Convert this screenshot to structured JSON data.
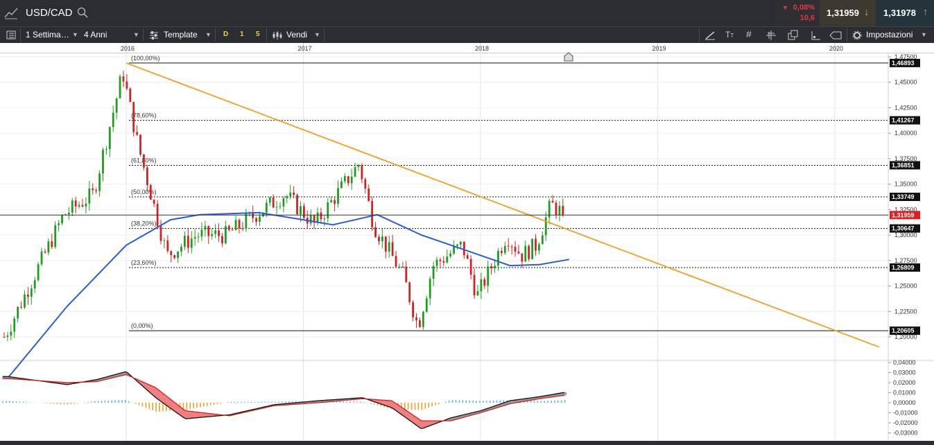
{
  "header": {
    "symbol": "USD/CAD",
    "change_pct": "0,08%",
    "change_abs": "10,6",
    "bid": "1,31959",
    "ask": "1,31978"
  },
  "toolbar": {
    "period": "1 Settima…",
    "range": "4 Anni",
    "template": "Template",
    "d": "D",
    "one": "1",
    "five": "5",
    "side": "Vendi",
    "settings": "Impostazioni"
  },
  "colors": {
    "bull": "#1e9e1e",
    "bear": "#d42020",
    "sma": "#2a5bd7",
    "trendline": "#f0a020",
    "current_price": "#e02020",
    "macd_up": "#5ab4e8",
    "macd_down": "#f0a020"
  },
  "chart_data": [
    {
      "type": "candlestick",
      "timeframe": "1 Settima…",
      "range": "4 Anni",
      "x_labels": [
        "2016",
        "2017",
        "2018",
        "2019",
        "2020"
      ],
      "y_ticks": [
        "1,47500",
        "1,45000",
        "1,42500",
        "1,40000",
        "1,37500",
        "1,35000",
        "1,32500",
        "1,30000",
        "1,27500",
        "1,25000",
        "1,22500",
        "1,20000"
      ],
      "ylim": [
        1.19,
        1.48
      ],
      "fibonacci": [
        {
          "label": "(100,00%)",
          "value": 1.46893,
          "price_label": "1,46893"
        },
        {
          "label": "(78,60%)",
          "value": 1.41267,
          "price_label": "1,41267"
        },
        {
          "label": "(61,80%)",
          "value": 1.36851,
          "price_label": "1,36851"
        },
        {
          "label": "(50,00%)",
          "value": 1.33749,
          "price_label": "1,33749"
        },
        {
          "label": "(38,20%)",
          "value": 1.30647,
          "price_label": "1,30647"
        },
        {
          "label": "(23,60%)",
          "value": 1.26809,
          "price_label": "1,26809"
        },
        {
          "label": "(0,00%)",
          "value": 1.20605,
          "price_label": "1,20605"
        }
      ],
      "current_price": {
        "value": 1.31959,
        "label": "1,31959"
      },
      "close_path": [
        [
          "2015-05",
          1.2
        ],
        [
          "2015-07",
          1.26
        ],
        [
          "2015-09",
          1.32
        ],
        [
          "2015-11",
          1.34
        ],
        [
          "2016-01",
          1.46
        ],
        [
          "2016-02",
          1.39
        ],
        [
          "2016-04",
          1.28
        ],
        [
          "2016-05",
          1.29
        ],
        [
          "2016-06",
          1.3
        ],
        [
          "2016-08",
          1.3
        ],
        [
          "2016-10",
          1.32
        ],
        [
          "2016-12",
          1.34
        ],
        [
          "2017-02",
          1.31
        ],
        [
          "2017-05",
          1.37
        ],
        [
          "2017-06",
          1.31
        ],
        [
          "2017-08",
          1.26
        ],
        [
          "2017-09",
          1.21
        ],
        [
          "2017-10",
          1.27
        ],
        [
          "2017-12",
          1.29
        ],
        [
          "2018-01",
          1.24
        ],
        [
          "2018-03",
          1.3
        ],
        [
          "2018-04",
          1.28
        ],
        [
          "2018-05",
          1.29
        ],
        [
          "2018-06",
          1.33
        ],
        [
          "2018-07",
          1.3196
        ]
      ],
      "sma": [
        [
          "2015-05",
          1.16
        ],
        [
          "2015-09",
          1.23
        ],
        [
          "2016-01",
          1.29
        ],
        [
          "2016-04",
          1.315
        ],
        [
          "2016-06",
          1.32
        ],
        [
          "2016-10",
          1.322
        ],
        [
          "2017-01",
          1.315
        ],
        [
          "2017-03",
          1.31
        ],
        [
          "2017-06",
          1.32
        ],
        [
          "2017-09",
          1.3
        ],
        [
          "2017-12",
          1.285
        ],
        [
          "2018-03",
          1.27
        ],
        [
          "2018-05",
          1.271
        ],
        [
          "2018-07",
          1.276
        ]
      ],
      "trendline": {
        "from": [
          "2016-01",
          1.469
        ],
        "to": [
          "2020-04",
          1.19
        ]
      }
    },
    {
      "type": "macd",
      "y_ticks": [
        "0,04000",
        "0,03000",
        "0,02000",
        "0,01000",
        "0,00000",
        "-0,01000",
        "-0,02000",
        "-0,03000"
      ],
      "ylim": [
        -0.03,
        0.04
      ],
      "macd": [
        [
          "2015-05",
          0.026
        ],
        [
          "2015-09",
          0.018
        ],
        [
          "2015-11",
          0.023
        ],
        [
          "2016-01",
          0.031
        ],
        [
          "2016-03",
          0.005
        ],
        [
          "2016-05",
          -0.016
        ],
        [
          "2016-08",
          -0.012
        ],
        [
          "2016-11",
          -0.002
        ],
        [
          "2017-02",
          0.002
        ],
        [
          "2017-05",
          0.005
        ],
        [
          "2017-07",
          -0.005
        ],
        [
          "2017-09",
          -0.026
        ],
        [
          "2017-11",
          -0.015
        ],
        [
          "2018-01",
          -0.008
        ],
        [
          "2018-03",
          0.002
        ],
        [
          "2018-05",
          0.006
        ],
        [
          "2018-07",
          0.011
        ]
      ],
      "signal": [
        [
          "2015-05",
          0.024
        ],
        [
          "2015-09",
          0.02
        ],
        [
          "2015-11",
          0.021
        ],
        [
          "2016-01",
          0.028
        ],
        [
          "2016-03",
          0.015
        ],
        [
          "2016-05",
          -0.008
        ],
        [
          "2016-08",
          -0.013
        ],
        [
          "2016-11",
          -0.003
        ],
        [
          "2017-02",
          0.0
        ],
        [
          "2017-05",
          0.004
        ],
        [
          "2017-07",
          0.002
        ],
        [
          "2017-09",
          -0.018
        ],
        [
          "2017-11",
          -0.018
        ],
        [
          "2018-01",
          -0.01
        ],
        [
          "2018-03",
          -0.001
        ],
        [
          "2018-05",
          0.004
        ],
        [
          "2018-07",
          0.008
        ]
      ]
    }
  ]
}
